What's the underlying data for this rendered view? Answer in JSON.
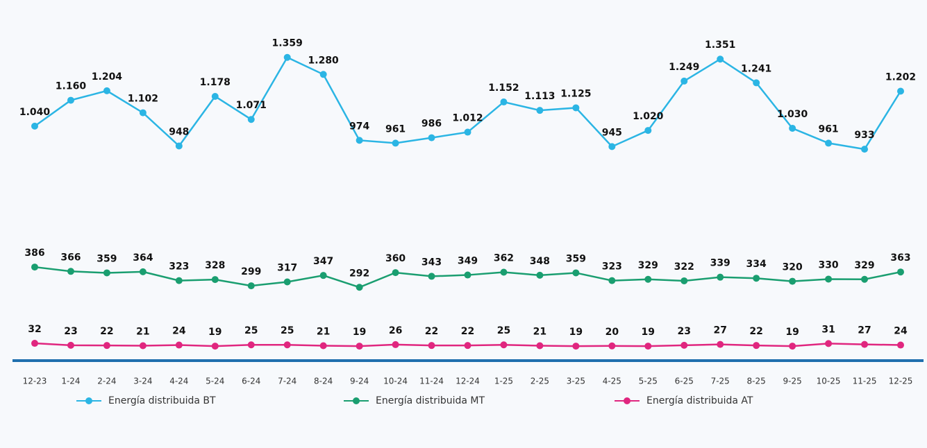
{
  "chart_data": {
    "type": "line",
    "categories": [
      "12-23",
      "1-24",
      "2-24",
      "3-24",
      "4-24",
      "5-24",
      "6-24",
      "7-24",
      "8-24",
      "9-24",
      "10-24",
      "11-24",
      "12-24",
      "1-25",
      "2-25",
      "3-25",
      "4-25",
      "5-25",
      "6-25",
      "7-25",
      "8-25",
      "9-25",
      "10-25",
      "11-25",
      "12-25"
    ],
    "series": [
      {
        "name": "Energía distribuida BT",
        "color": "#2bb5e4",
        "values": [
          1040,
          1160,
          1204,
          1102,
          948,
          1178,
          1071,
          1359,
          1280,
          974,
          961,
          986,
          1012,
          1152,
          1113,
          1125,
          945,
          1020,
          1249,
          1351,
          1241,
          1030,
          961,
          933,
          1202
        ],
        "value_labels": [
          "1.040",
          "1.160",
          "1.204",
          "1.102",
          "948",
          "1.178",
          "1.071",
          "1.359",
          "1.280",
          "974",
          "961",
          "986",
          "1.012",
          "1.152",
          "1.113",
          "1.125",
          "945",
          "1.020",
          "1.249",
          "1.351",
          "1.241",
          "1.030",
          "961",
          "933",
          "1.202"
        ]
      },
      {
        "name": "Energía distribuida MT",
        "color": "#1a9e70",
        "values": [
          386,
          366,
          359,
          364,
          323,
          328,
          299,
          317,
          347,
          292,
          360,
          343,
          349,
          362,
          348,
          359,
          323,
          329,
          322,
          339,
          334,
          320,
          330,
          329,
          363
        ]
      },
      {
        "name": "Energía distribuida AT",
        "color": "#e0267f",
        "values": [
          32,
          23,
          22,
          21,
          24,
          19,
          25,
          25,
          21,
          19,
          26,
          22,
          22,
          25,
          21,
          19,
          20,
          19,
          23,
          27,
          22,
          19,
          31,
          27,
          24
        ]
      }
    ],
    "ylim": [
      0,
      1400
    ],
    "legend": "bottom"
  }
}
